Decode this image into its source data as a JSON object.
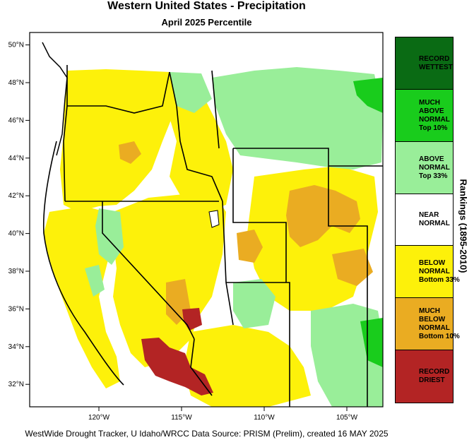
{
  "title": "Western United States - Precipitation",
  "subtitle": "April 2025 Percentile",
  "credit": "WestWide Drought Tracker, U Idaho/WRCC Data Source: PRISM (Prelim), created 16 MAY 2025",
  "legend_title": "Rankings (1895-2010)",
  "legend": [
    {
      "lines": [
        "RECORD",
        "WETTEST"
      ],
      "color": "#0a6b14"
    },
    {
      "lines": [
        "MUCH",
        "ABOVE",
        "NORMAL",
        "Top 10%"
      ],
      "color": "#19cc1c"
    },
    {
      "lines": [
        "ABOVE",
        "NORMAL",
        "Top 33%"
      ],
      "color": "#99ee99"
    },
    {
      "lines": [
        "NEAR",
        "NORMAL"
      ],
      "color": "#ffffff"
    },
    {
      "lines": [
        "BELOW",
        "NORMAL",
        "Bottom 33%"
      ],
      "color": "#fdf10a"
    },
    {
      "lines": [
        "MUCH",
        "BELOW",
        "NORMAL",
        "Bottom 10%"
      ],
      "color": "#eaac22"
    },
    {
      "lines": [
        "RECORD",
        "DRIEST"
      ],
      "color": "#b32424"
    }
  ],
  "lat_labels": [
    {
      "deg": 50,
      "text": "50°N"
    },
    {
      "deg": 48,
      "text": "48°N"
    },
    {
      "deg": 46,
      "text": "46°N"
    },
    {
      "deg": 44,
      "text": "44°N"
    },
    {
      "deg": 42,
      "text": "42°N"
    },
    {
      "deg": 40,
      "text": "40°N"
    },
    {
      "deg": 38,
      "text": "38°N"
    },
    {
      "deg": 36,
      "text": "36°N"
    },
    {
      "deg": 34,
      "text": "34°N"
    },
    {
      "deg": 32,
      "text": "32°N"
    }
  ],
  "lon_labels": [
    {
      "deg": -120,
      "text": "120°W"
    },
    {
      "deg": -115,
      "text": "115°W"
    },
    {
      "deg": -110,
      "text": "110°W"
    },
    {
      "deg": -105,
      "text": "105°W"
    }
  ]
}
